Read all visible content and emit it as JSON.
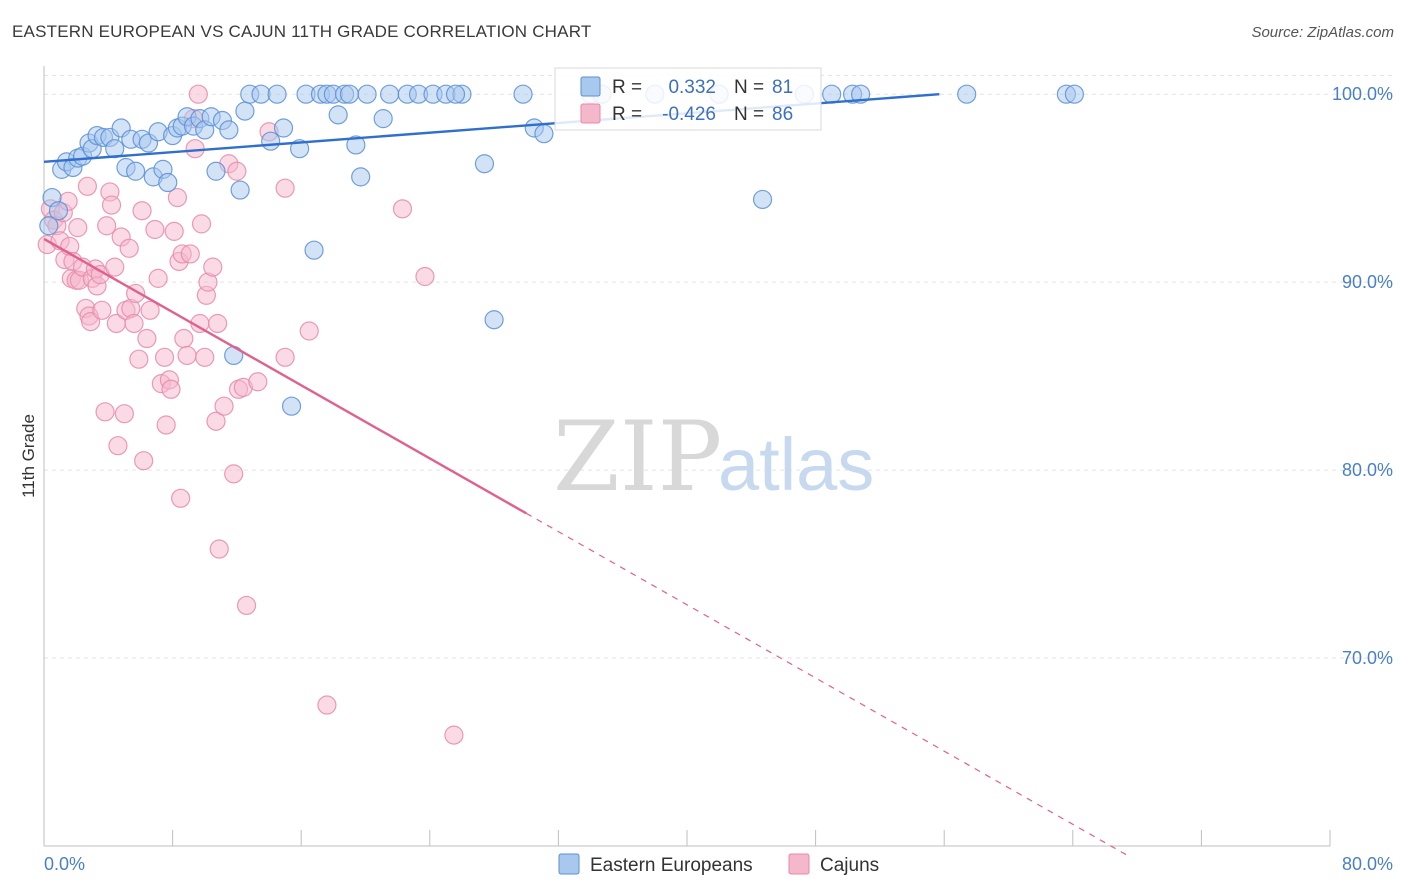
{
  "title": "EASTERN EUROPEAN VS CAJUN 11TH GRADE CORRELATION CHART",
  "source": "Source: ZipAtlas.com",
  "watermark": {
    "zip": "ZIP",
    "atlas": "atlas"
  },
  "colors": {
    "blue_fill": "#a8c8ee",
    "blue_stroke": "#5b8fd6",
    "blue_line": "#2f6fce",
    "pink_fill": "#f5b8cb",
    "pink_stroke": "#e889a8",
    "pink_line": "#e0608e",
    "grid": "#e3e3e3"
  },
  "legend": {
    "rows": [
      {
        "r_label": "R =",
        "r_value": "0.332",
        "n_label": "N =",
        "n_value": "81"
      },
      {
        "r_label": "R =",
        "r_value": "-0.426",
        "n_label": "N =",
        "n_value": "86"
      }
    ],
    "bottom": [
      "Eastern Europeans",
      "Cajuns"
    ]
  },
  "chart_data": {
    "type": "scatter",
    "title": "EASTERN EUROPEAN VS CAJUN 11TH GRADE CORRELATION CHART",
    "xlabel": "",
    "ylabel": "11th Grade",
    "xlim": [
      0,
      80
    ],
    "ylim": [
      60,
      101.5
    ],
    "x_tick_labels": [
      "0.0%",
      "80.0%"
    ],
    "y_ticks": [
      70,
      80,
      90,
      100
    ],
    "y_tick_labels": [
      "70.0%",
      "80.0%",
      "90.0%",
      "100.0%"
    ],
    "series": [
      {
        "name": "Eastern Europeans",
        "r": 0.332,
        "n": 81,
        "trend": {
          "x0": 0,
          "y0": 96.4,
          "x1": 55.7,
          "y1": 100.0,
          "dashed_to_x": null
        },
        "points": [
          [
            0.5,
            94.5
          ],
          [
            0.9,
            93.8
          ],
          [
            1.1,
            96.0
          ],
          [
            1.4,
            96.4
          ],
          [
            1.8,
            96.1
          ],
          [
            2.1,
            96.6
          ],
          [
            2.4,
            96.7
          ],
          [
            2.8,
            97.4
          ],
          [
            3.0,
            97.1
          ],
          [
            3.3,
            97.8
          ],
          [
            3.7,
            97.7
          ],
          [
            4.1,
            97.7
          ],
          [
            4.4,
            97.1
          ],
          [
            4.8,
            98.2
          ],
          [
            5.1,
            96.1
          ],
          [
            5.4,
            97.6
          ],
          [
            5.7,
            95.9
          ],
          [
            6.1,
            97.6
          ],
          [
            6.5,
            97.4
          ],
          [
            6.8,
            95.6
          ],
          [
            7.1,
            98.0
          ],
          [
            7.4,
            96.0
          ],
          [
            7.7,
            95.3
          ],
          [
            8.0,
            97.8
          ],
          [
            8.3,
            98.2
          ],
          [
            8.6,
            98.3
          ],
          [
            8.9,
            98.8
          ],
          [
            9.3,
            98.3
          ],
          [
            9.7,
            98.7
          ],
          [
            10.0,
            98.1
          ],
          [
            10.4,
            98.8
          ],
          [
            10.7,
            95.9
          ],
          [
            11.1,
            98.6
          ],
          [
            11.5,
            98.1
          ],
          [
            11.8,
            86.1
          ],
          [
            12.2,
            94.9
          ],
          [
            12.5,
            99.1
          ],
          [
            12.8,
            100.0
          ],
          [
            13.5,
            100.0
          ],
          [
            14.1,
            97.5
          ],
          [
            14.5,
            100.0
          ],
          [
            14.9,
            98.2
          ],
          [
            15.4,
            83.4
          ],
          [
            15.9,
            97.1
          ],
          [
            16.3,
            100.0
          ],
          [
            16.8,
            91.7
          ],
          [
            17.2,
            100.0
          ],
          [
            17.6,
            100.0
          ],
          [
            18.0,
            100.0
          ],
          [
            18.3,
            98.9
          ],
          [
            18.7,
            100.0
          ],
          [
            19.0,
            100.0
          ],
          [
            19.4,
            97.3
          ],
          [
            19.7,
            95.6
          ],
          [
            20.1,
            100.0
          ],
          [
            21.1,
            98.7
          ],
          [
            21.5,
            100.0
          ],
          [
            22.6,
            100.0
          ],
          [
            23.3,
            100.0
          ],
          [
            24.2,
            100.0
          ],
          [
            25.0,
            100.0
          ],
          [
            26.0,
            100.0
          ],
          [
            25.6,
            100.0
          ],
          [
            27.4,
            96.3
          ],
          [
            28.0,
            88.0
          ],
          [
            29.8,
            100.0
          ],
          [
            30.5,
            98.2
          ],
          [
            31.1,
            97.9
          ],
          [
            34.0,
            100.0
          ],
          [
            34.7,
            100.0
          ],
          [
            38.0,
            100.0
          ],
          [
            42.0,
            100.0
          ],
          [
            44.7,
            94.4
          ],
          [
            47.3,
            100.0
          ],
          [
            49.0,
            100.0
          ],
          [
            50.3,
            100.0
          ],
          [
            50.8,
            100.0
          ],
          [
            57.4,
            100.0
          ],
          [
            63.6,
            100.0
          ],
          [
            64.1,
            100.0
          ],
          [
            0.3,
            93.0
          ]
        ]
      },
      {
        "name": "Cajuns",
        "r": -0.426,
        "n": 86,
        "trend": {
          "x0": 0,
          "y0": 92.3,
          "x1": 30.0,
          "y1": 77.7,
          "dashed_to_x": 67.5
        },
        "points": [
          [
            0.2,
            92.0
          ],
          [
            0.4,
            93.9
          ],
          [
            0.6,
            93.3
          ],
          [
            0.8,
            93.0
          ],
          [
            1.0,
            92.2
          ],
          [
            1.2,
            93.7
          ],
          [
            1.3,
            91.2
          ],
          [
            1.5,
            94.3
          ],
          [
            1.6,
            91.9
          ],
          [
            1.7,
            90.2
          ],
          [
            1.8,
            91.1
          ],
          [
            2.0,
            90.1
          ],
          [
            2.1,
            92.9
          ],
          [
            2.2,
            90.1
          ],
          [
            2.4,
            90.8
          ],
          [
            2.6,
            88.6
          ],
          [
            2.7,
            95.1
          ],
          [
            2.8,
            88.2
          ],
          [
            2.9,
            87.9
          ],
          [
            3.0,
            90.2
          ],
          [
            3.2,
            90.7
          ],
          [
            3.3,
            89.8
          ],
          [
            3.5,
            90.4
          ],
          [
            3.6,
            88.5
          ],
          [
            3.8,
            83.1
          ],
          [
            3.9,
            93.0
          ],
          [
            4.1,
            94.8
          ],
          [
            4.2,
            94.1
          ],
          [
            4.4,
            90.8
          ],
          [
            4.5,
            87.8
          ],
          [
            4.6,
            81.3
          ],
          [
            4.8,
            92.4
          ],
          [
            5.0,
            83.0
          ],
          [
            5.1,
            88.5
          ],
          [
            5.3,
            91.8
          ],
          [
            5.4,
            88.6
          ],
          [
            5.6,
            87.8
          ],
          [
            5.7,
            89.4
          ],
          [
            5.9,
            85.9
          ],
          [
            6.1,
            93.8
          ],
          [
            6.2,
            80.5
          ],
          [
            6.4,
            87.0
          ],
          [
            6.6,
            88.5
          ],
          [
            6.9,
            92.8
          ],
          [
            7.1,
            90.2
          ],
          [
            7.3,
            84.6
          ],
          [
            7.5,
            86.0
          ],
          [
            7.6,
            82.4
          ],
          [
            7.8,
            84.8
          ],
          [
            7.9,
            84.3
          ],
          [
            8.1,
            92.7
          ],
          [
            8.3,
            94.5
          ],
          [
            8.4,
            91.1
          ],
          [
            8.5,
            78.5
          ],
          [
            8.6,
            91.5
          ],
          [
            8.7,
            87.0
          ],
          [
            8.9,
            86.1
          ],
          [
            9.1,
            91.5
          ],
          [
            9.3,
            98.7
          ],
          [
            9.4,
            97.1
          ],
          [
            9.6,
            100.0
          ],
          [
            9.7,
            87.8
          ],
          [
            9.8,
            93.1
          ],
          [
            10.0,
            86.0
          ],
          [
            10.1,
            89.3
          ],
          [
            10.2,
            90.0
          ],
          [
            10.5,
            90.8
          ],
          [
            10.7,
            82.6
          ],
          [
            10.8,
            87.8
          ],
          [
            10.9,
            75.8
          ],
          [
            11.2,
            83.4
          ],
          [
            11.5,
            96.3
          ],
          [
            11.8,
            79.8
          ],
          [
            12.0,
            95.9
          ],
          [
            12.1,
            84.3
          ],
          [
            12.4,
            84.4
          ],
          [
            12.6,
            72.8
          ],
          [
            13.3,
            84.7
          ],
          [
            14.0,
            98.0
          ],
          [
            15.0,
            95.0
          ],
          [
            15.0,
            86.0
          ],
          [
            16.5,
            87.4
          ],
          [
            17.6,
            67.5
          ],
          [
            22.3,
            93.9
          ],
          [
            23.7,
            90.3
          ],
          [
            25.5,
            65.9
          ]
        ]
      }
    ]
  }
}
